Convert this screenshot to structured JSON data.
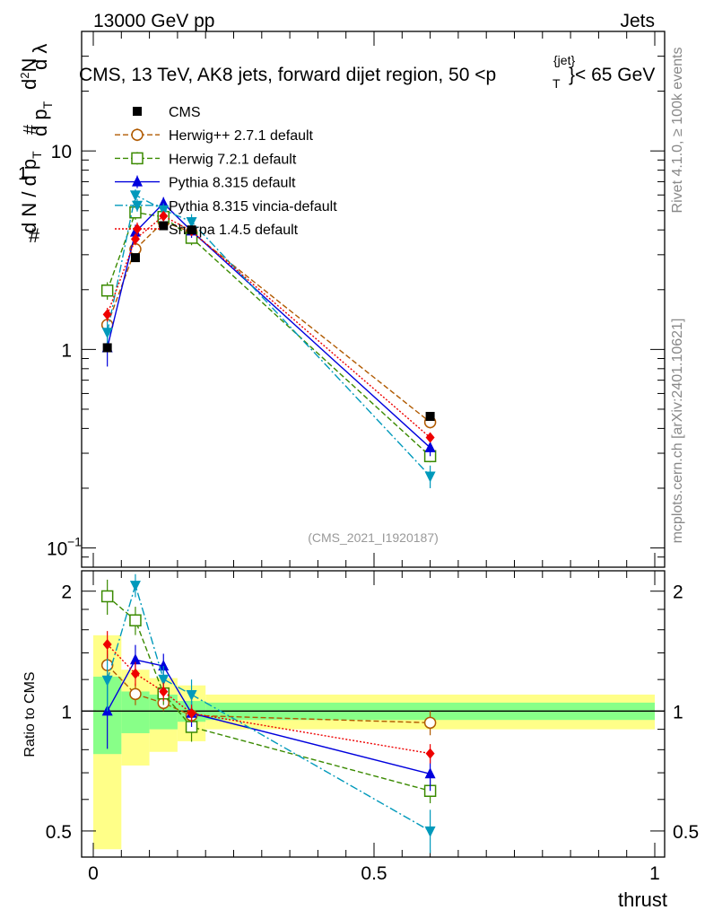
{
  "header": {
    "energy": "13000 GeV pp",
    "category": "Jets",
    "title": "CMS, 13 TeV, AK8 jets, forward dijet region, 50 <p",
    "title_sup": "{jet}",
    "title_sub": "T",
    "title_end": "}< 65 GeV",
    "rivet": "Rivet 4.1.0, ≥ 100k events",
    "mcplots": "mcplots.cern.ch [arXiv:2401.10621]",
    "analysis": "(CMS_2021_I1920187)"
  },
  "colors": {
    "band_yellow": "#ffff88",
    "band_green": "#88ff88",
    "cms": "#000000",
    "herwigpp": "#b05a00",
    "herwig7": "#3a8a00",
    "pythia": "#0000dd",
    "vincia": "#0099bb",
    "sherpa": "#ee0000"
  },
  "chart_data": {
    "type": "line",
    "title": "CMS, 13 TeV, AK8 jets, forward dijet region, 50 < pT jet < 65 GeV",
    "xlabel": "thrust",
    "ylabel": "1/(dN/dpT) d2N/(dpT dlambda)",
    "ratio_ylabel": "Ratio to CMS",
    "yscale": "log",
    "xlim": [
      -0.02,
      1.0
    ],
    "ylim": [
      0.08,
      40
    ],
    "ratio_ylim": [
      0.43,
      2.25
    ],
    "x_ticks": [
      "0",
      "0.5",
      "1"
    ],
    "y_tick_labels": [
      "10",
      "1"
    ],
    "y_tick_min_base": "10",
    "y_tick_min_exp": "−1",
    "ratio_ticks": [
      "2",
      "1",
      "0.5"
    ],
    "bins": [
      [
        0.0,
        0.05
      ],
      [
        0.05,
        0.1
      ],
      [
        0.1,
        0.15
      ],
      [
        0.15,
        0.2
      ],
      [
        0.2,
        1.0
      ]
    ],
    "x": [
      0.025,
      0.075,
      0.125,
      0.175,
      0.6
    ],
    "data": {
      "name": "CMS",
      "values": [
        1.02,
        2.9,
        4.2,
        4.0,
        0.46
      ],
      "stat": [
        0.78,
        0.88,
        0.9,
        0.94,
        0.95
      ],
      "total": [
        0.45,
        0.73,
        0.79,
        0.84,
        0.9
      ]
    },
    "series": [
      {
        "name": "Herwig++ 2.7.1 default",
        "key": "herwigpp",
        "marker": "circle-open",
        "dash": "6,3",
        "values": [
          1.33,
          3.2,
          4.4,
          3.9,
          0.43
        ],
        "err": [
          0.12,
          0.2,
          0.2,
          0.2,
          0.03
        ]
      },
      {
        "name": "Herwig 7.2.1 default",
        "key": "herwig7",
        "marker": "square-open",
        "dash": "6,3",
        "values": [
          1.98,
          4.9,
          4.65,
          3.65,
          0.29
        ],
        "err": [
          0.2,
          0.4,
          0.3,
          0.3,
          0.02
        ]
      },
      {
        "name": "Pythia 8.315 default",
        "key": "pythia",
        "marker": "triangle-up",
        "dash": "",
        "values": [
          1.02,
          3.9,
          5.45,
          3.95,
          0.32
        ],
        "err": [
          0.2,
          0.35,
          0.4,
          0.3,
          0.03
        ]
      },
      {
        "name": "Pythia 8.315 vincia-default",
        "key": "vincia",
        "marker": "triangle-down",
        "dash": "9,3,2,3",
        "values": [
          1.22,
          6.0,
          5.05,
          4.4,
          0.23
        ],
        "err": [
          0.2,
          0.4,
          0.4,
          0.4,
          0.03
        ]
      },
      {
        "name": "Sherpa 1.4.5 default",
        "key": "sherpa",
        "marker": "diamond",
        "dash": "2,2",
        "values": [
          1.5,
          3.6,
          4.7,
          3.95,
          0.36
        ],
        "err": [
          0.12,
          0.25,
          0.25,
          0.2,
          0.02
        ]
      }
    ]
  }
}
